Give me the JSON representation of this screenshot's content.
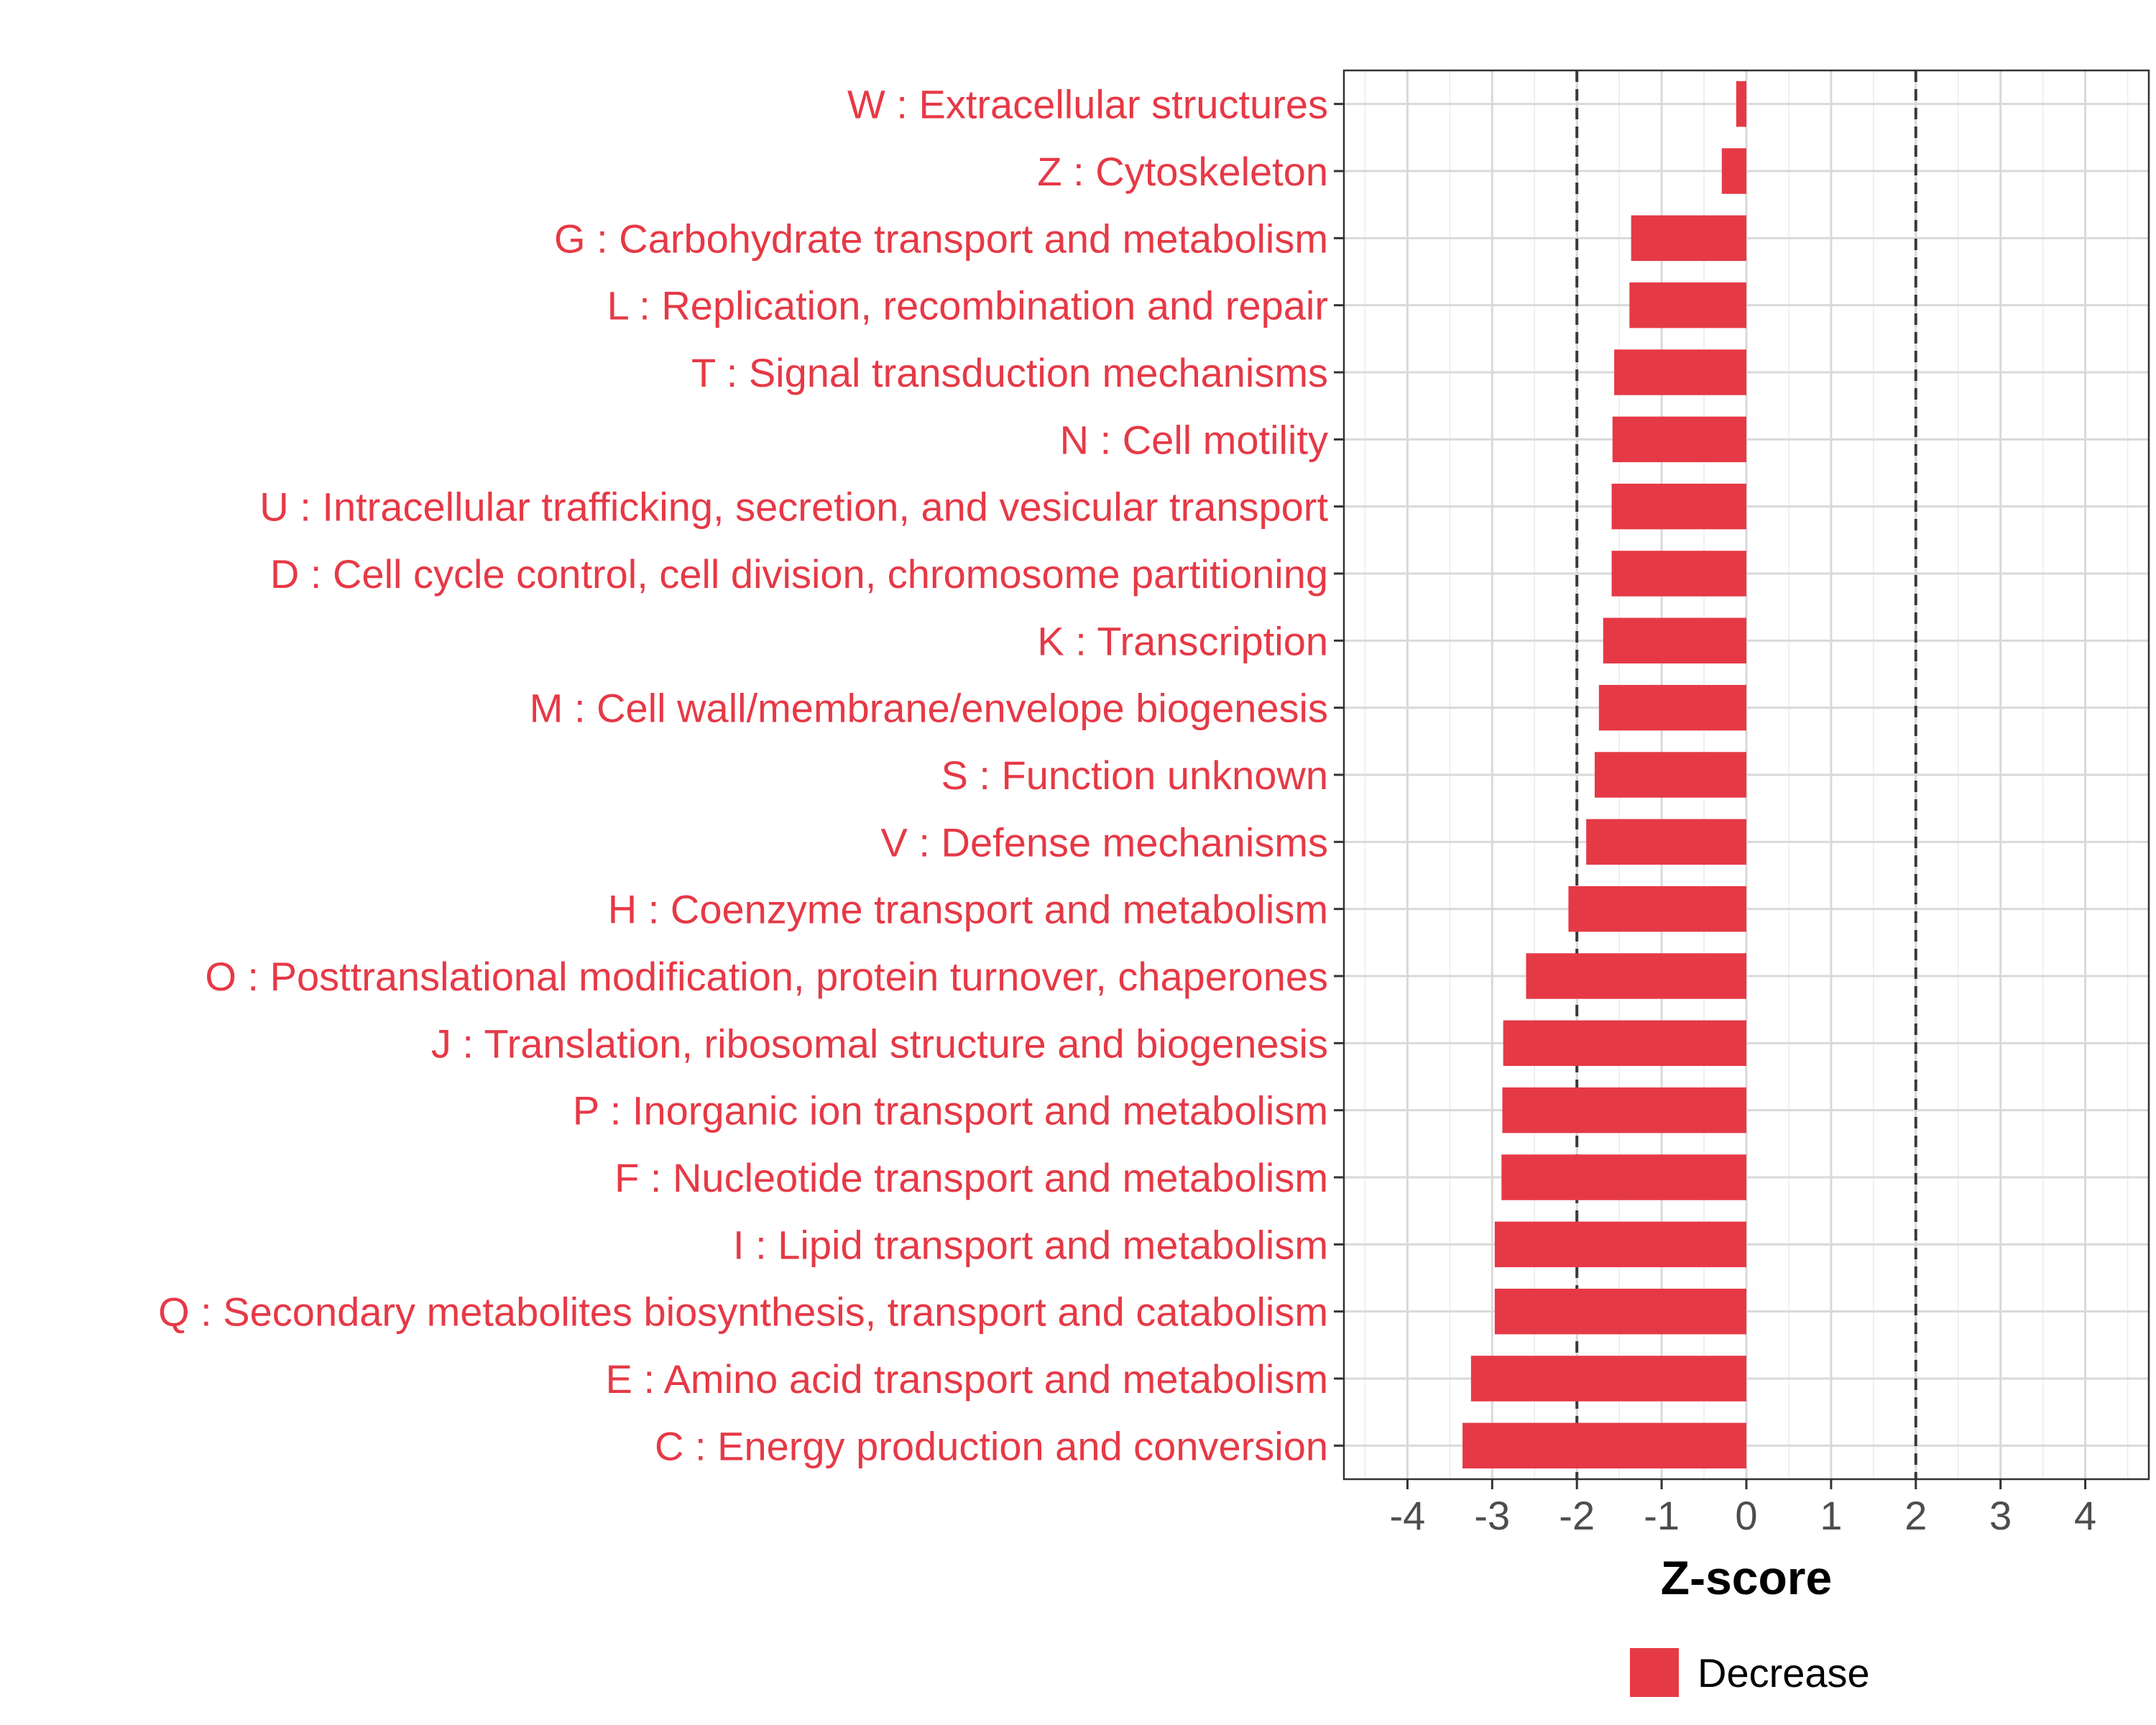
{
  "chart_data": {
    "type": "bar",
    "orientation": "horizontal",
    "categories": [
      "W : Extracellular structures",
      "Z : Cytoskeleton",
      "G : Carbohydrate transport and metabolism",
      "L : Replication, recombination and repair",
      "T : Signal transduction mechanisms",
      "N : Cell motility",
      "U : Intracellular trafficking, secretion, and vesicular transport",
      "D : Cell cycle control, cell division, chromosome partitioning",
      "K : Transcription",
      "M : Cell wall/membrane/envelope biogenesis",
      "S : Function unknown",
      "V : Defense mechanisms",
      "H : Coenzyme transport and metabolism",
      "O : Posttranslational modification, protein turnover, chaperones",
      "J : Translation, ribosomal structure and biogenesis",
      "P : Inorganic ion transport and metabolism",
      "F : Nucleotide transport and metabolism",
      "I : Lipid transport and metabolism",
      "Q : Secondary metabolites biosynthesis, transport and catabolism",
      "E : Amino acid transport and metabolism",
      "C : Energy production and conversion"
    ],
    "values": [
      -0.12,
      -0.29,
      -1.36,
      -1.38,
      -1.56,
      -1.58,
      -1.59,
      -1.59,
      -1.69,
      -1.74,
      -1.79,
      -1.89,
      -2.1,
      -2.6,
      -2.87,
      -2.88,
      -2.89,
      -2.97,
      -2.97,
      -3.25,
      -3.35
    ],
    "xlabel": "Z-score",
    "ylabel": "",
    "xlim": [
      -4.75,
      4.75
    ],
    "xticks": [
      -4,
      -3,
      -2,
      -1,
      0,
      1,
      2,
      3,
      4
    ],
    "xtick_labels": [
      "-4",
      "-3",
      "-2",
      "-1",
      "0",
      "1",
      "2",
      "3",
      "4"
    ],
    "reference_lines": [
      -2,
      2
    ],
    "grid": true,
    "bar_color": "#E63946",
    "label_color": "#E63946",
    "legend": {
      "position": "bottom",
      "entries": [
        {
          "label": "Decrease",
          "color": "#E63946"
        }
      ]
    }
  }
}
